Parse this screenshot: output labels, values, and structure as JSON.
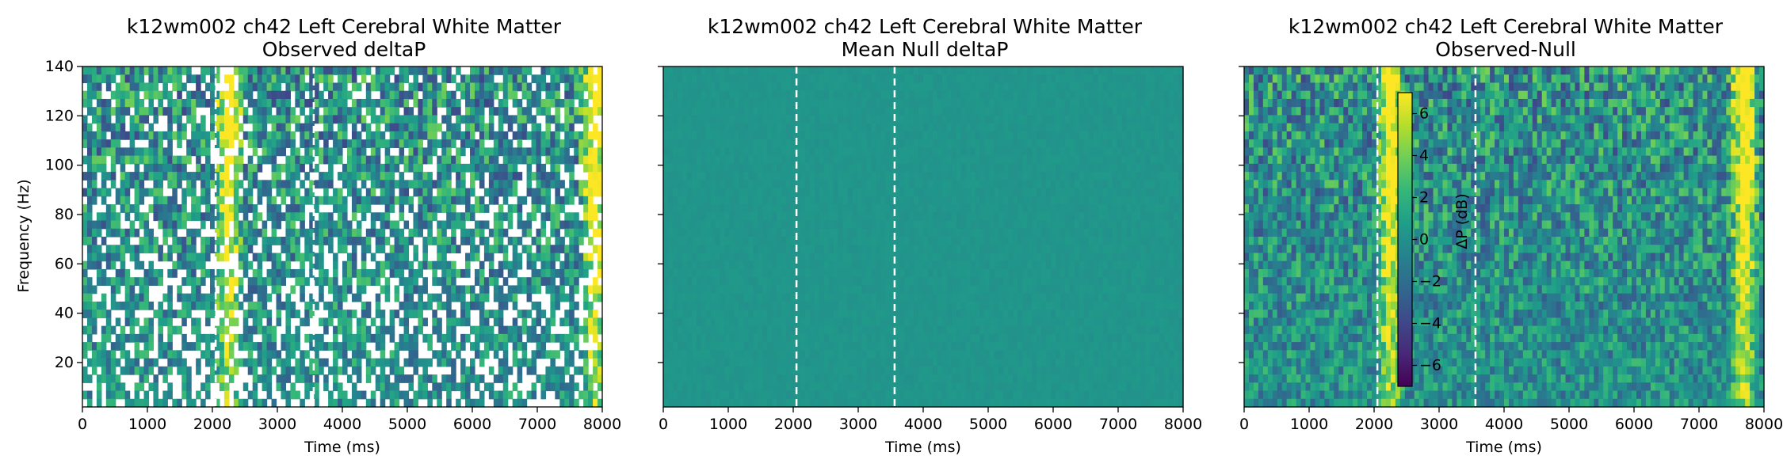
{
  "colors": {
    "viridis_stops": [
      "#440154",
      "#482878",
      "#3e4989",
      "#31688e",
      "#26828e",
      "#1f9e89",
      "#35b779",
      "#6ece58",
      "#b5de2b",
      "#fde725"
    ],
    "marker_line": "#ffffff",
    "axis": "#000000"
  },
  "chart_data": [
    {
      "type": "heatmap",
      "title_line1": "k12wm002 ch42 Left Cerebral White Matter",
      "title_line2": "Observed deltaP",
      "xlabel": "Time (ms)",
      "ylabel": "Frequency (Hz)",
      "xlim": [
        0,
        8000
      ],
      "ylim": [
        2,
        140
      ],
      "xticks": [
        "0",
        "1000",
        "2000",
        "3000",
        "4000",
        "5000",
        "6000",
        "7000",
        "8000"
      ],
      "yticks": [
        "20",
        "40",
        "60",
        "80",
        "100",
        "120",
        "140"
      ],
      "event_markers_ms": [
        2050,
        3560
      ],
      "hot_spots_ms": [
        2250,
        7900
      ],
      "masked": true
    },
    {
      "type": "heatmap",
      "title_line1": "k12wm002 ch42 Left Cerebral White Matter",
      "title_line2": "Mean Null deltaP",
      "xlabel": "Time (ms)",
      "ylabel": "",
      "xlim": [
        0,
        8000
      ],
      "ylim": [
        2,
        140
      ],
      "xticks": [
        "0",
        "1000",
        "2000",
        "3000",
        "4000",
        "5000",
        "6000",
        "7000",
        "8000"
      ],
      "yticks": [],
      "event_markers_ms": [
        2050,
        3560
      ],
      "hot_spots_ms": [],
      "masked": false
    },
    {
      "type": "heatmap",
      "title_line1": "k12wm002 ch42 Left Cerebral White Matter",
      "title_line2": "Observed-Null",
      "xlabel": "Time (ms)",
      "ylabel": "",
      "xlim": [
        0,
        8000
      ],
      "ylim": [
        2,
        140
      ],
      "xticks": [
        "0",
        "1000",
        "2000",
        "3000",
        "4000",
        "5000",
        "6000",
        "7000",
        "8000"
      ],
      "yticks": [],
      "event_markers_ms": [
        2050,
        3560
      ],
      "hot_spots_ms": [
        2250,
        7700
      ],
      "masked": false,
      "colorbar": {
        "label": "ΔP (dB)",
        "range": [
          -7,
          7
        ],
        "ticks": [
          "6",
          "4",
          "2",
          "0",
          "−2",
          "−4",
          "−6"
        ]
      }
    }
  ]
}
